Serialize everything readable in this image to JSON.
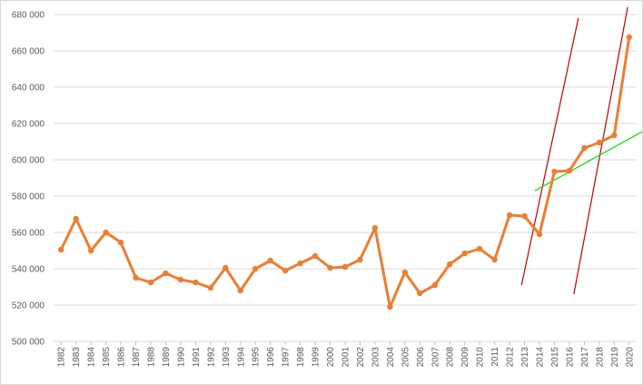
{
  "chart_data": {
    "type": "line",
    "title": "",
    "xlabel": "",
    "ylabel": "",
    "ylim": [
      500000,
      680000
    ],
    "yticks": [
      500000,
      520000,
      540000,
      560000,
      580000,
      600000,
      620000,
      640000,
      660000,
      680000
    ],
    "ytick_labels": [
      "500 000",
      "520 000",
      "540 000",
      "560 000",
      "580 000",
      "600 000",
      "620 000",
      "640 000",
      "660 000",
      "680 000"
    ],
    "grid": "horizontal",
    "legend": "none",
    "categories": [
      "1982",
      "1983",
      "1984",
      "1985",
      "1986",
      "1987",
      "1988",
      "1989",
      "1990",
      "1991",
      "1992",
      "1993",
      "1994",
      "1995",
      "1996",
      "1997",
      "1998",
      "1999",
      "2000",
      "2001",
      "2002",
      "2003",
      "2004",
      "2005",
      "2006",
      "2007",
      "2008",
      "2009",
      "2010",
      "2011",
      "2012",
      "2013",
      "2014",
      "2015",
      "2016",
      "2017",
      "2018",
      "2019",
      "2020"
    ],
    "series": [
      {
        "color": "#ed7d31",
        "values": [
          550500,
          567500,
          550000,
          560000,
          554500,
          535000,
          532500,
          537500,
          534000,
          532500,
          529500,
          540500,
          528000,
          540000,
          544500,
          539000,
          543000,
          547000,
          540500,
          541000,
          545000,
          562500,
          519000,
          538000,
          526500,
          531000,
          542500,
          548500,
          551000,
          545000,
          569500,
          569000,
          559000,
          593500,
          594000,
          606500,
          609500,
          613500,
          667500
        ]
      }
    ],
    "annotations": [
      {
        "kind": "trend-line",
        "color": "#c00000",
        "from": {
          "x": 2012.8,
          "y": 531000
        },
        "to": {
          "x": 2016.6,
          "y": 678000
        }
      },
      {
        "kind": "trend-line",
        "color": "#c00000",
        "from": {
          "x": 2016.3,
          "y": 526000
        },
        "to": {
          "x": 2019.9,
          "y": 684000
        }
      },
      {
        "kind": "trend-line",
        "color": "#00e000",
        "from": {
          "x": 2013.7,
          "y": 583000
        },
        "to": {
          "x": 2021.2,
          "y": 617000
        }
      }
    ]
  }
}
